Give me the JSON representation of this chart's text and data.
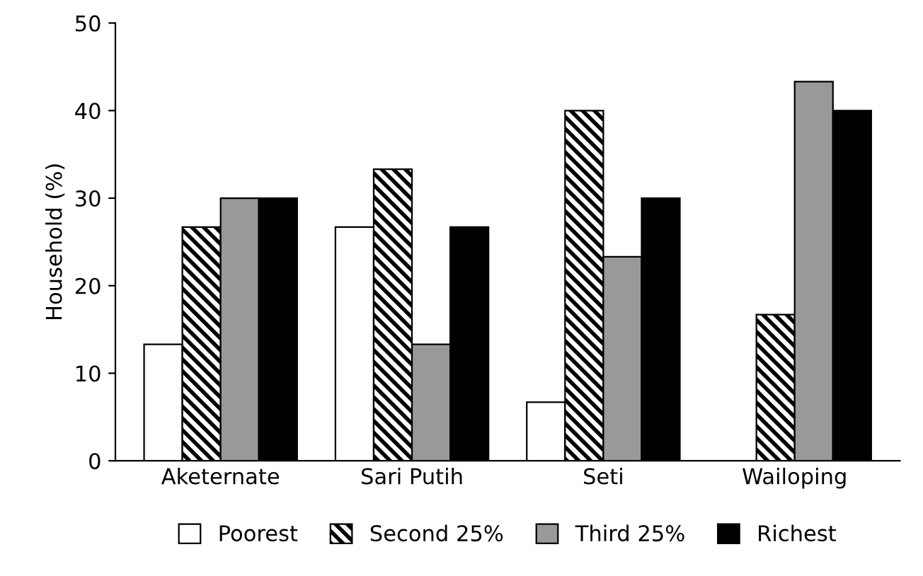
{
  "chart_data": {
    "type": "bar",
    "ylabel": "Household (%)",
    "categories": [
      "Aketernate",
      "Sari Putih",
      "Seti",
      "Wailoping"
    ],
    "series": [
      {
        "name": "Poorest",
        "color": "#ffffff",
        "values": [
          13.3,
          26.7,
          6.7,
          0
        ]
      },
      {
        "name": "Second 25%",
        "color": "#000000",
        "values": [
          26.7,
          33.3,
          40,
          16.7
        ]
      },
      {
        "name": "Third 25%",
        "color": "#999999",
        "values": [
          30,
          13.3,
          23.3,
          43.3
        ]
      },
      {
        "name": "Richest",
        "color": "#000000",
        "values": [
          30,
          26.7,
          30,
          40
        ]
      }
    ],
    "ylim": [
      0,
      50
    ],
    "yticks": [
      0,
      10,
      20,
      30,
      40,
      50
    ],
    "grid": false,
    "legend": "bottom"
  }
}
